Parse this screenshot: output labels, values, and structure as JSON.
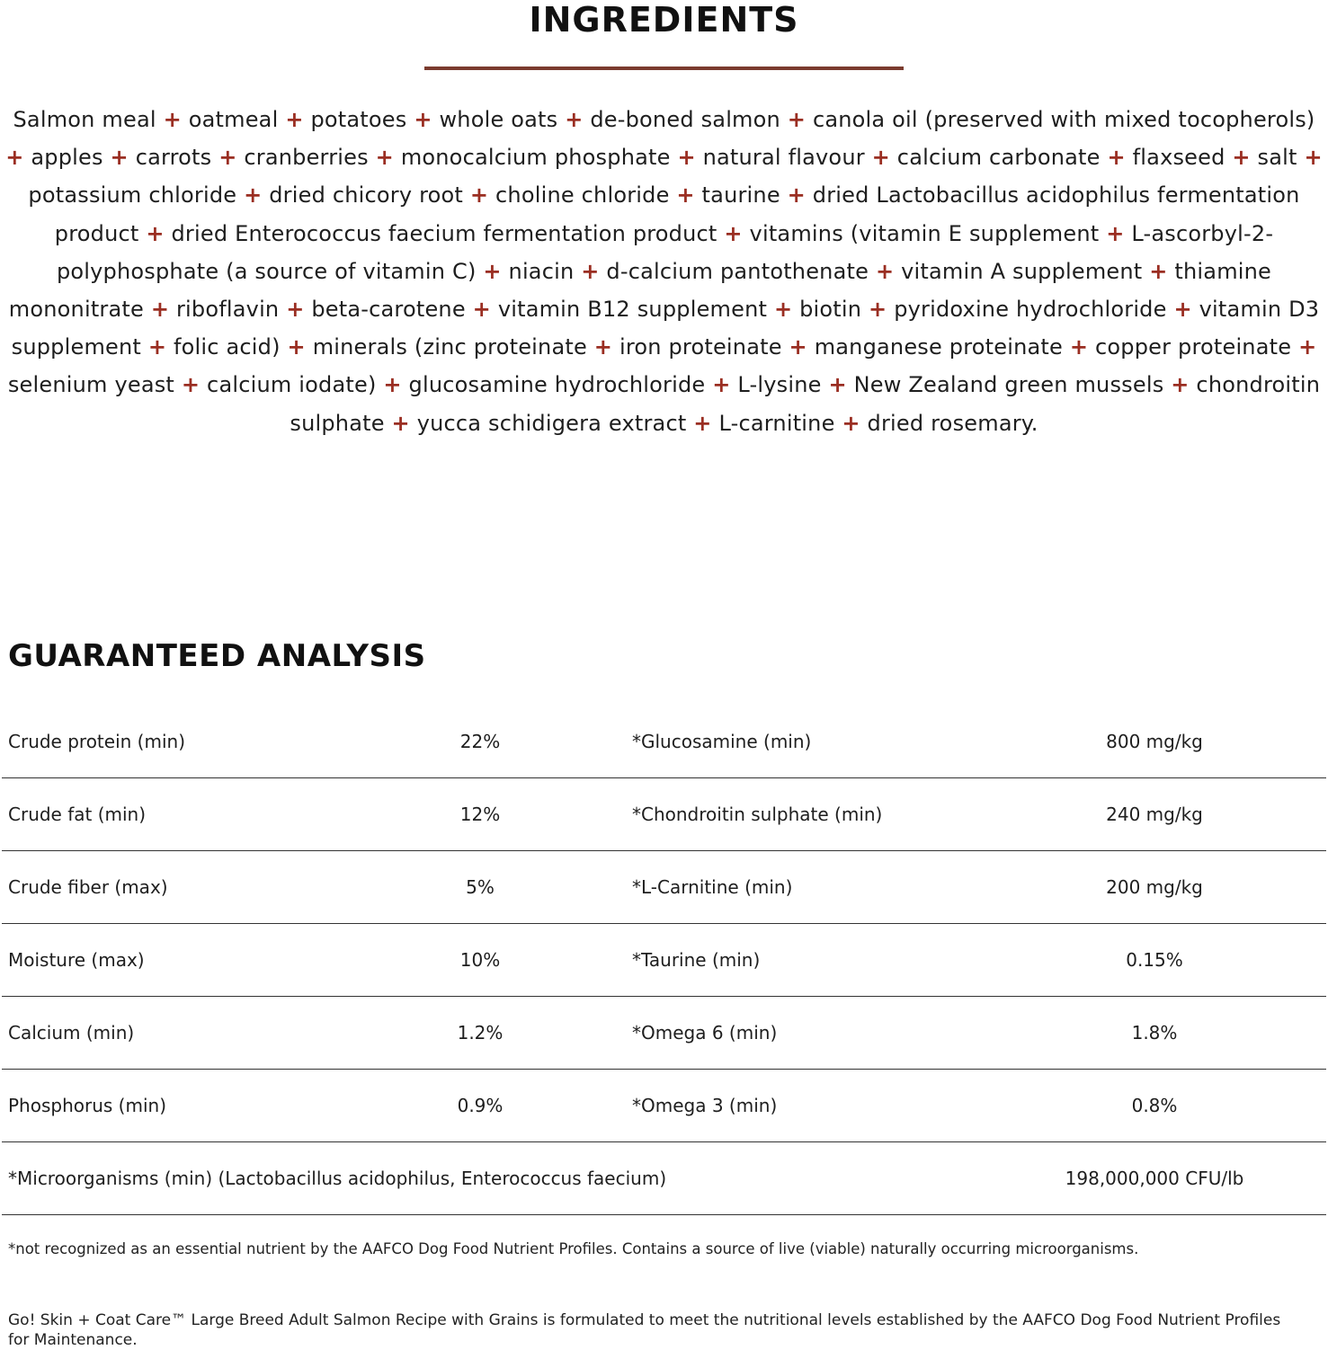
{
  "ingredients": {
    "title": "INGREDIENTS",
    "separator": "+",
    "items": [
      "Salmon meal",
      "oatmeal",
      "potatoes",
      "whole oats",
      "de-boned salmon",
      "canola oil (preserved with mixed tocopherols)",
      "apples",
      "carrots",
      "cranberries",
      "monocalcium phosphate",
      "natural flavour",
      "calcium carbonate",
      "flaxseed",
      "salt",
      "potassium chloride",
      "dried chicory root",
      "choline chloride",
      "taurine",
      "dried Lactobacillus acidophilus fermentation product",
      "dried Enterococcus faecium fermentation product",
      "vitamins (vitamin E supplement",
      "L-ascorbyl-2-polyphosphate (a source of vitamin C)",
      "niacin",
      "d-calcium pantothenate",
      "vitamin A supplement",
      "thiamine mononitrate",
      "riboflavin",
      "beta-carotene",
      "vitamin B12 supplement",
      "biotin",
      "pyridoxine hydrochloride",
      "vitamin D3 supplement",
      "folic acid)",
      "minerals (zinc proteinate",
      "iron proteinate",
      "manganese proteinate",
      "copper proteinate",
      "selenium yeast",
      "calcium iodate)",
      "glucosamine hydrochloride",
      "L-lysine",
      "New Zealand green mussels",
      "chondroitin sulphate",
      "yucca schidigera extract",
      "L-carnitine",
      "dried rosemary."
    ],
    "accent_color": "#9a2e22",
    "rule_color": "#7a3b2e"
  },
  "analysis": {
    "title": "GUARANTEED ANALYSIS",
    "rows": [
      {
        "l1": "Crude protein (min)",
        "v1": "22%",
        "l2": "*Glucosamine (min)",
        "v2": "800 mg/kg"
      },
      {
        "l1": "Crude fat (min)",
        "v1": "12%",
        "l2": "*Chondroitin sulphate (min)",
        "v2": "240 mg/kg"
      },
      {
        "l1": "Crude fiber (max)",
        "v1": "5%",
        "l2": "*L-Carnitine (min)",
        "v2": "200 mg/kg"
      },
      {
        "l1": "Moisture (max)",
        "v1": "10%",
        "l2": "*Taurine (min)",
        "v2": "0.15%"
      },
      {
        "l1": "Calcium (min)",
        "v1": "1.2%",
        "l2": "*Omega 6 (min)",
        "v2": "1.8%"
      },
      {
        "l1": "Phosphorus (min)",
        "v1": "0.9%",
        "l2": "*Omega 3 (min)",
        "v2": "0.8%"
      }
    ],
    "micro": {
      "label": "*Microorganisms (min) (Lactobacillus acidophilus, Enterococcus faecium)",
      "value": "198,000,000 CFU/lb"
    },
    "footnote": "*not recognized as an essential nutrient by the AAFCO Dog Food Nutrient Profiles. Contains a source of live (viable) naturally occurring microorganisms.",
    "statement": "Go! Skin + Coat Care™ Large Breed Adult Salmon Recipe with Grains is formulated to meet the nutritional levels established by the AAFCO Dog Food Nutrient Profiles for Maintenance."
  }
}
